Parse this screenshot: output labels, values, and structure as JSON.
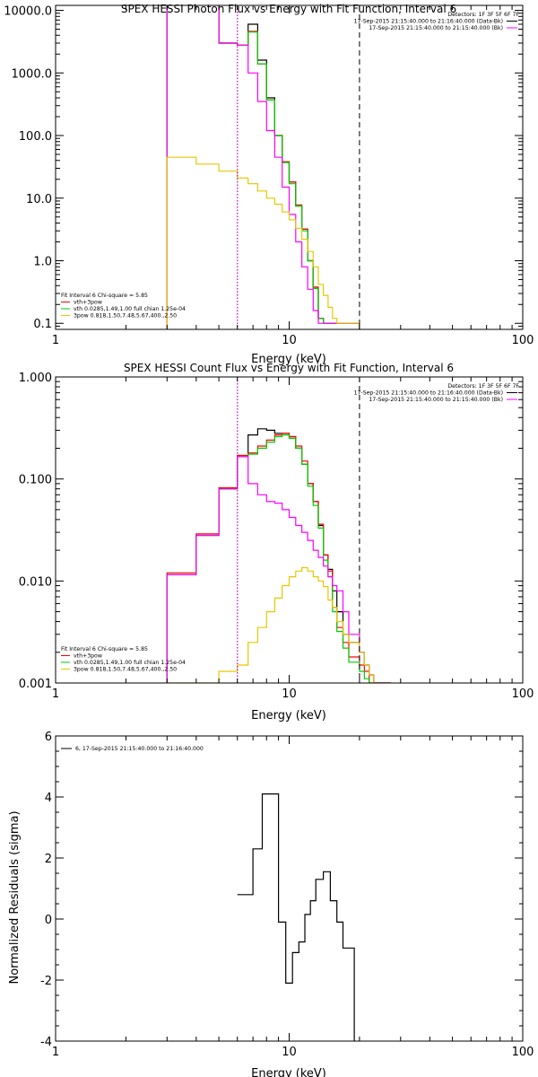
{
  "chart_data": [
    {
      "type": "line",
      "title": "SPEX HESSI Photon Flux vs Energy with Fit Function, Interval 6",
      "xlabel": "Energy (keV)",
      "ylabel": "",
      "xscale": "log",
      "yscale": "log",
      "xlim": [
        1,
        100
      ],
      "ylim": [
        0.08,
        12000
      ],
      "x_ticks": [
        "1",
        "10",
        "100"
      ],
      "x_tick_values": [
        1,
        10,
        100
      ],
      "y_ticks": [
        "0.1",
        "1.0",
        "10.0",
        "100.0",
        "1000.0",
        "10000.0"
      ],
      "y_tick_values": [
        0.1,
        1,
        10,
        100,
        1000,
        10000
      ],
      "bin_edges": [
        3,
        4,
        5,
        6,
        6.67,
        7.33,
        8,
        8.67,
        9.33,
        10,
        10.67,
        11.33,
        12,
        12.67,
        13.33,
        14,
        14.67,
        15.33,
        16,
        17,
        18,
        20
      ],
      "vlines": [
        {
          "x": 6,
          "style": "dotted",
          "color": "#000000"
        },
        {
          "x": 6,
          "style": "dotted",
          "color": "#ff00ff"
        },
        {
          "x": 20,
          "style": "dashed",
          "color": "#000000"
        }
      ],
      "legend_right": [
        {
          "text": "Detectors: 1F 3F 5F 6F 7F"
        },
        {
          "text": "17-Sep-2015 21:15:40.000 to 21:16:40.000 (Data-Bk)",
          "color": "#000000"
        },
        {
          "text": "17-Sep-2015 21:15:40.000 to 21:15:40.000 (Bk)",
          "color": "#ff00ff"
        }
      ],
      "legend_left": [
        {
          "text": "Fit Interval  6    Chi-square = 5.85"
        },
        {
          "text": "vth+3pow",
          "color": "#ff0000"
        },
        {
          "text": "vth 0.0285,1.49,1.00  full chian 1.25e-04",
          "color": "#00cc00"
        },
        {
          "text": "3pow 0.818,1.50,7.48,5.67,400.,2.50",
          "color": "#e6c800"
        }
      ],
      "series": [
        {
          "color": "#000000",
          "values": [
            15000,
            15000,
            3000,
            2800,
            6000,
            1600,
            400,
            100,
            38,
            18,
            7.5,
            3.2,
            1.0,
            0.36,
            0.12,
            0.1,
            0.1,
            0.1,
            0.1,
            0.1,
            0.1
          ]
        },
        {
          "color": "#ff0000",
          "values": [
            15000,
            15000,
            3000,
            2800,
            4600,
            1400,
            370,
            100,
            38,
            18,
            7.8,
            3.2,
            1.0,
            0.38,
            0.12,
            0.1,
            0.1,
            0.1,
            0.1,
            0.1,
            0.1
          ]
        },
        {
          "color": "#00cc00",
          "values": [
            15000,
            15000,
            3000,
            2800,
            4500,
            1400,
            370,
            100,
            37,
            17,
            7.5,
            3.0,
            1.0,
            0.36,
            0.12,
            0.1,
            0.1,
            0.1,
            0.1,
            0.1,
            0.1
          ]
        },
        {
          "color": "#ff00ff",
          "values": [
            15000,
            15000,
            3000,
            2800,
            1000,
            350,
            120,
            45,
            15,
            5.5,
            2.0,
            0.8,
            0.35,
            0.16,
            0.1,
            0.1,
            0.1,
            0.1,
            0.1,
            0.1,
            0.1
          ]
        },
        {
          "color": "#e6c800",
          "values": [
            45,
            35,
            27,
            21,
            17,
            13,
            10,
            8,
            6,
            4.5,
            3.3,
            2.2,
            1.4,
            0.8,
            0.42,
            0.28,
            0.18,
            0.12,
            0.1,
            0.1,
            0.1
          ]
        }
      ]
    },
    {
      "type": "line",
      "title": "SPEX HESSI Count Flux vs Energy with Fit Function, Interval 6",
      "xlabel": "Energy (keV)",
      "ylabel": "",
      "xscale": "log",
      "yscale": "log",
      "xlim": [
        1,
        100
      ],
      "ylim": [
        0.001,
        1
      ],
      "x_ticks": [
        "1",
        "10",
        "100"
      ],
      "x_tick_values": [
        1,
        10,
        100
      ],
      "y_ticks": [
        "0.001",
        "0.010",
        "0.100",
        "1.000"
      ],
      "y_tick_values": [
        0.001,
        0.01,
        0.1,
        1
      ],
      "bin_edges": [
        3,
        4,
        5,
        6,
        6.67,
        7.33,
        8,
        8.67,
        9.33,
        10,
        10.67,
        11.33,
        12,
        12.67,
        13.33,
        14,
        14.67,
        15.33,
        16,
        17,
        18,
        20,
        21,
        22,
        23,
        24,
        25,
        26,
        27
      ],
      "vlines": [
        {
          "x": 6,
          "style": "dotted",
          "color": "#000000"
        },
        {
          "x": 6,
          "style": "dotted",
          "color": "#ff00ff"
        },
        {
          "x": 20,
          "style": "dashed",
          "color": "#000000"
        }
      ],
      "legend_right": [
        {
          "text": "Detectors: 1F 3F 5F 6F 7F"
        },
        {
          "text": "17-Sep-2015 21:15:40.000 to 21:16:40.000 (Data-Bk)",
          "color": "#000000"
        },
        {
          "text": "17-Sep-2015 21:15:40.000 to 21:15:40.000 (Bk)",
          "color": "#ff00ff"
        }
      ],
      "legend_left": [
        {
          "text": "Fit Interval  6    Chi-square = 5.85"
        },
        {
          "text": "vth+3pow",
          "color": "#ff0000"
        },
        {
          "text": "vth 0.0285,1.49,1.00  full chian 1.25e-04",
          "color": "#00cc00"
        },
        {
          "text": "3pow 0.818,1.50,7.48,5.67,400.,2.50",
          "color": "#e6c800"
        }
      ],
      "series": [
        {
          "color": "#000000",
          "values": [
            0.0115,
            0.028,
            0.08,
            0.17,
            0.27,
            0.31,
            0.3,
            0.28,
            0.28,
            0.26,
            0.2,
            0.14,
            0.09,
            0.06,
            0.035,
            0.018,
            0.013,
            0.008,
            0.005,
            0.003,
            0.0025,
            0.002,
            0.0015,
            0.0012,
            0.001,
            0.001,
            0.001,
            0.001
          ]
        },
        {
          "color": "#ff0000",
          "values": [
            0.012,
            0.029,
            0.082,
            0.17,
            0.18,
            0.21,
            0.24,
            0.27,
            0.28,
            0.26,
            0.21,
            0.15,
            0.09,
            0.06,
            0.036,
            0.018,
            0.0125,
            0.0055,
            0.0035,
            0.0025,
            0.0018,
            0.0015,
            0.0013,
            0.001,
            0.001,
            0.001,
            0.001,
            0.001
          ]
        },
        {
          "color": "#00cc00",
          "values": [
            0.0115,
            0.028,
            0.08,
            0.165,
            0.175,
            0.2,
            0.23,
            0.26,
            0.27,
            0.25,
            0.2,
            0.14,
            0.085,
            0.055,
            0.033,
            0.016,
            0.011,
            0.005,
            0.0032,
            0.0022,
            0.0016,
            0.0013,
            0.0011,
            0.001,
            0.001,
            0.001,
            0.001,
            0.001
          ]
        },
        {
          "color": "#ff00ff",
          "values": [
            0.0115,
            0.028,
            0.08,
            0.165,
            0.09,
            0.07,
            0.06,
            0.058,
            0.05,
            0.042,
            0.035,
            0.03,
            0.025,
            0.02,
            0.017,
            0.014,
            0.011,
            0.009,
            0.008,
            0.005,
            0.003,
            0.002,
            0.0015,
            0.0012,
            0.001,
            0.001,
            0.001,
            0.001
          ]
        },
        {
          "color": "#e6c800",
          "values": [
            0.001,
            0.001,
            0.0013,
            0.0015,
            0.0025,
            0.0035,
            0.005,
            0.0068,
            0.009,
            0.011,
            0.0125,
            0.0135,
            0.0125,
            0.011,
            0.01,
            0.0088,
            0.0065,
            0.0055,
            0.004,
            0.003,
            0.0025,
            0.002,
            0.0015,
            0.0012,
            0.001,
            0.001,
            0.001,
            0.001
          ]
        }
      ]
    },
    {
      "type": "line",
      "title": "",
      "xlabel": "Energy (keV)",
      "ylabel": "Normalized Residuals (sigma)",
      "xscale": "log",
      "yscale": "linear",
      "xlim": [
        1,
        100
      ],
      "ylim": [
        -4,
        6
      ],
      "x_ticks": [
        "1",
        "10",
        "100"
      ],
      "x_tick_values": [
        1,
        10,
        100
      ],
      "y_ticks": [
        "-4",
        "-2",
        "0",
        "2",
        "4",
        "6"
      ],
      "y_tick_values": [
        -4,
        -2,
        0,
        2,
        4,
        6
      ],
      "legend": [
        {
          "text": "6, 17-Sep-2015 21:15:40.000 to 21:16:40.000",
          "color": "#000000"
        }
      ],
      "bin_edges": [
        6,
        7,
        7.67,
        8.33,
        9,
        9.67,
        10.33,
        11,
        11.67,
        12.33,
        13,
        14,
        15,
        16,
        17,
        18,
        19,
        20
      ],
      "series": [
        {
          "color": "#000000",
          "values": [
            0.8,
            2.3,
            4.1,
            4.1,
            -0.1,
            -2.1,
            -1.1,
            -0.75,
            0.15,
            0.6,
            1.3,
            1.55,
            0.6,
            -0.1,
            -0.95,
            -0.95,
            -4.2
          ]
        }
      ]
    }
  ]
}
